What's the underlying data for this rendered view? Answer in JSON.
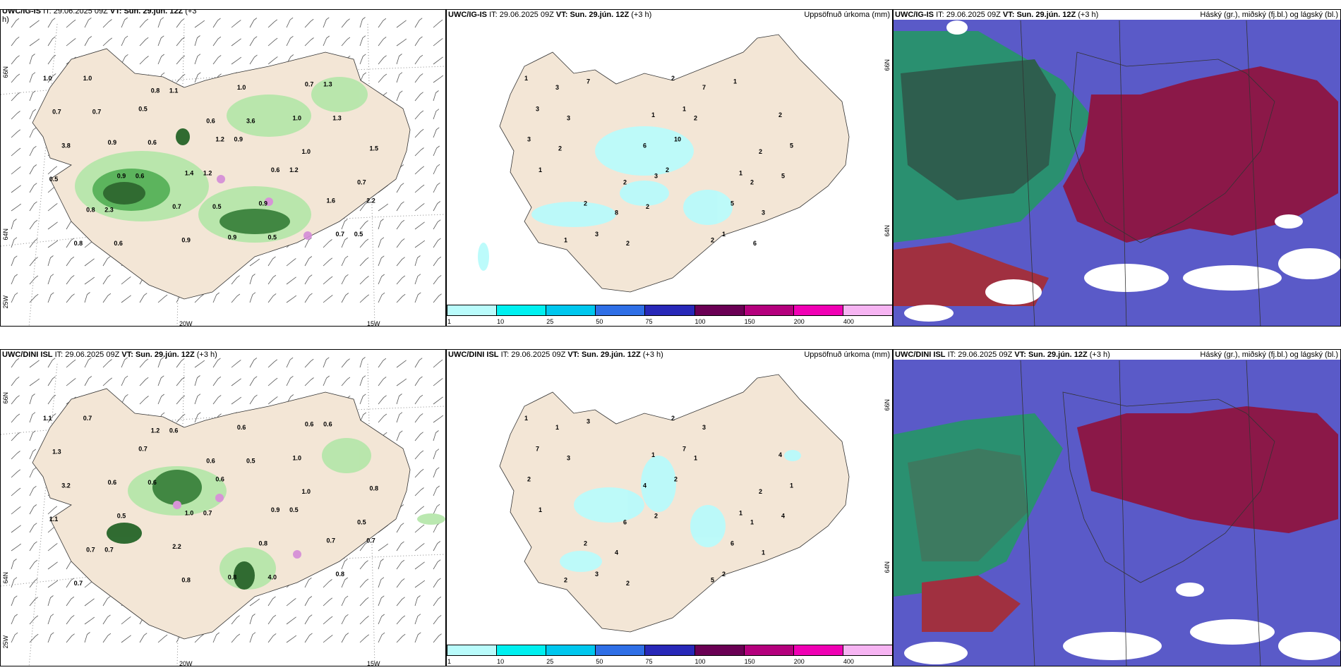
{
  "top": {
    "winds": {
      "model": "UWC/IG-IS",
      "it_label": "IT:",
      "it_value": "29.06.2025 09Z",
      "vt_label": "VT:",
      "vt_value": "Sun. 29.jún. 12Z",
      "offset": "(+3",
      "offset_cont": "h)",
      "lat_labels": [
        "66N",
        "64N",
        "25W"
      ],
      "lon_labels": [
        "20W",
        "15W"
      ],
      "values": [
        "1.0",
        "1.4",
        "0.7",
        "0.8",
        "0.6",
        "1.6",
        "0.9",
        "0.9",
        "1.5",
        "0.8",
        "0.6",
        "0.7",
        "0.7",
        "1.0",
        "0.8",
        "1.2",
        "0.7",
        "0.9",
        "1.0",
        "0.7",
        "0.5",
        "0.9",
        "3.8",
        "0.9",
        "1.0",
        "1.0",
        "1.2",
        "1.3",
        "2.3",
        "3.6",
        "2.2",
        "0.6",
        "0.5",
        "0.5",
        "1.1",
        "1.2",
        "0.7",
        "0.5",
        "1.3",
        "0.6",
        "0.9",
        "0.5",
        "0.6"
      ]
    },
    "precip": {
      "model": "UWC/IG-IS",
      "it_label": "IT:",
      "it_value": "29.06.2025 09Z",
      "vt_label": "VT:",
      "vt_value": "Sun. 29.jún. 12Z",
      "offset": "(+3 h)",
      "right_title": "Uppsöfnuð úrkoma (mm)",
      "lat_labels": [
        "66N",
        "64N"
      ],
      "values": [
        "1",
        "1",
        "1",
        "1",
        "2",
        "2",
        "2",
        "2",
        "2",
        "2",
        "3",
        "5",
        "6",
        "3",
        "2",
        "1",
        "3",
        "5",
        "7",
        "8",
        "3",
        "1",
        "3",
        "3",
        "3",
        "10",
        "7",
        "5",
        "2",
        "2",
        "1",
        "1",
        "2",
        "2",
        "6",
        "2"
      ],
      "legend": [
        "1",
        "10",
        "25",
        "50",
        "75",
        "100",
        "150",
        "200",
        "400"
      ]
    },
    "clouds": {
      "model": "UWC/IG-IS",
      "it_label": "IT:",
      "it_value": "29.06.2025 09Z",
      "vt_label": "VT:",
      "vt_value": "Sun. 29.jún. 12Z",
      "offset": "(+3 h)",
      "right_title": "Háský (gr.), miðský (fj.bl.) og lágský (bl.)"
    }
  },
  "bottom": {
    "winds": {
      "model": "UWC/DINI ISL",
      "it_label": "IT:",
      "it_value": "29.06.2025 09Z",
      "vt_label": "VT:",
      "vt_value": "Sun. 29.jún. 12Z",
      "offset": "(+3 h)",
      "lat_labels": [
        "66N",
        "64N",
        "25W"
      ],
      "lon_labels": [
        "20W",
        "15W"
      ],
      "values": [
        "1.1",
        "1.0",
        "0.6",
        "0.7",
        "0.6",
        "0.7",
        "0.6",
        "0.8",
        "0.8",
        "1.2",
        "0.9",
        "1.3",
        "2.2",
        "1.0",
        "0.7",
        "0.6",
        "0.8",
        "0.5",
        "0.6",
        "0.5",
        "0.7",
        "0.8",
        "3.2",
        "0.8",
        "1.0",
        "0.7",
        "0.7",
        "0.6",
        "0.7",
        "0.5",
        "0.7",
        "0.6",
        "4.0",
        "1.1",
        "0.6",
        "0.5"
      ]
    },
    "precip": {
      "model": "UWC/DINI ISL",
      "it_label": "IT:",
      "it_value": "29.06.2025 09Z",
      "vt_label": "VT:",
      "vt_value": "Sun. 29.jún. 12Z",
      "offset": "(+3 h)",
      "right_title": "Uppsöfnuð úrkoma (mm)",
      "lat_labels": [
        "66N",
        "64N"
      ],
      "values": [
        "1",
        "1",
        "1",
        "2",
        "2",
        "2",
        "2",
        "4",
        "5",
        "6",
        "7",
        "6",
        "4",
        "1",
        "1",
        "7",
        "3",
        "1",
        "3",
        "4",
        "2",
        "2",
        "2",
        "3",
        "1",
        "2",
        "3",
        "4",
        "1",
        "2",
        "1"
      ],
      "legend": [
        "1",
        "10",
        "25",
        "50",
        "75",
        "100",
        "150",
        "200",
        "400"
      ]
    },
    "clouds": {
      "model": "UWC/DINI ISL",
      "it_label": "IT:",
      "it_value": "29.06.2025 09Z",
      "vt_label": "VT:",
      "vt_value": "Sun. 29.jún. 12Z",
      "offset": "(+3 h)",
      "right_title": "Háský (gr.), miðský (fj.bl.) og lágský (bl.)"
    }
  },
  "colors": {
    "land": "#f3e6d6",
    "precip_legend": [
      "#b9fbfb",
      "#00f0f0",
      "#00c7ee",
      "#2f6fe6",
      "#2828b8",
      "#6a0054",
      "#b4007d",
      "#f000b4",
      "#f6b4f2"
    ],
    "cloud_high": "#00b485",
    "cloud_mid": "#8b1848",
    "cloud_low": "#5a5ac8"
  }
}
